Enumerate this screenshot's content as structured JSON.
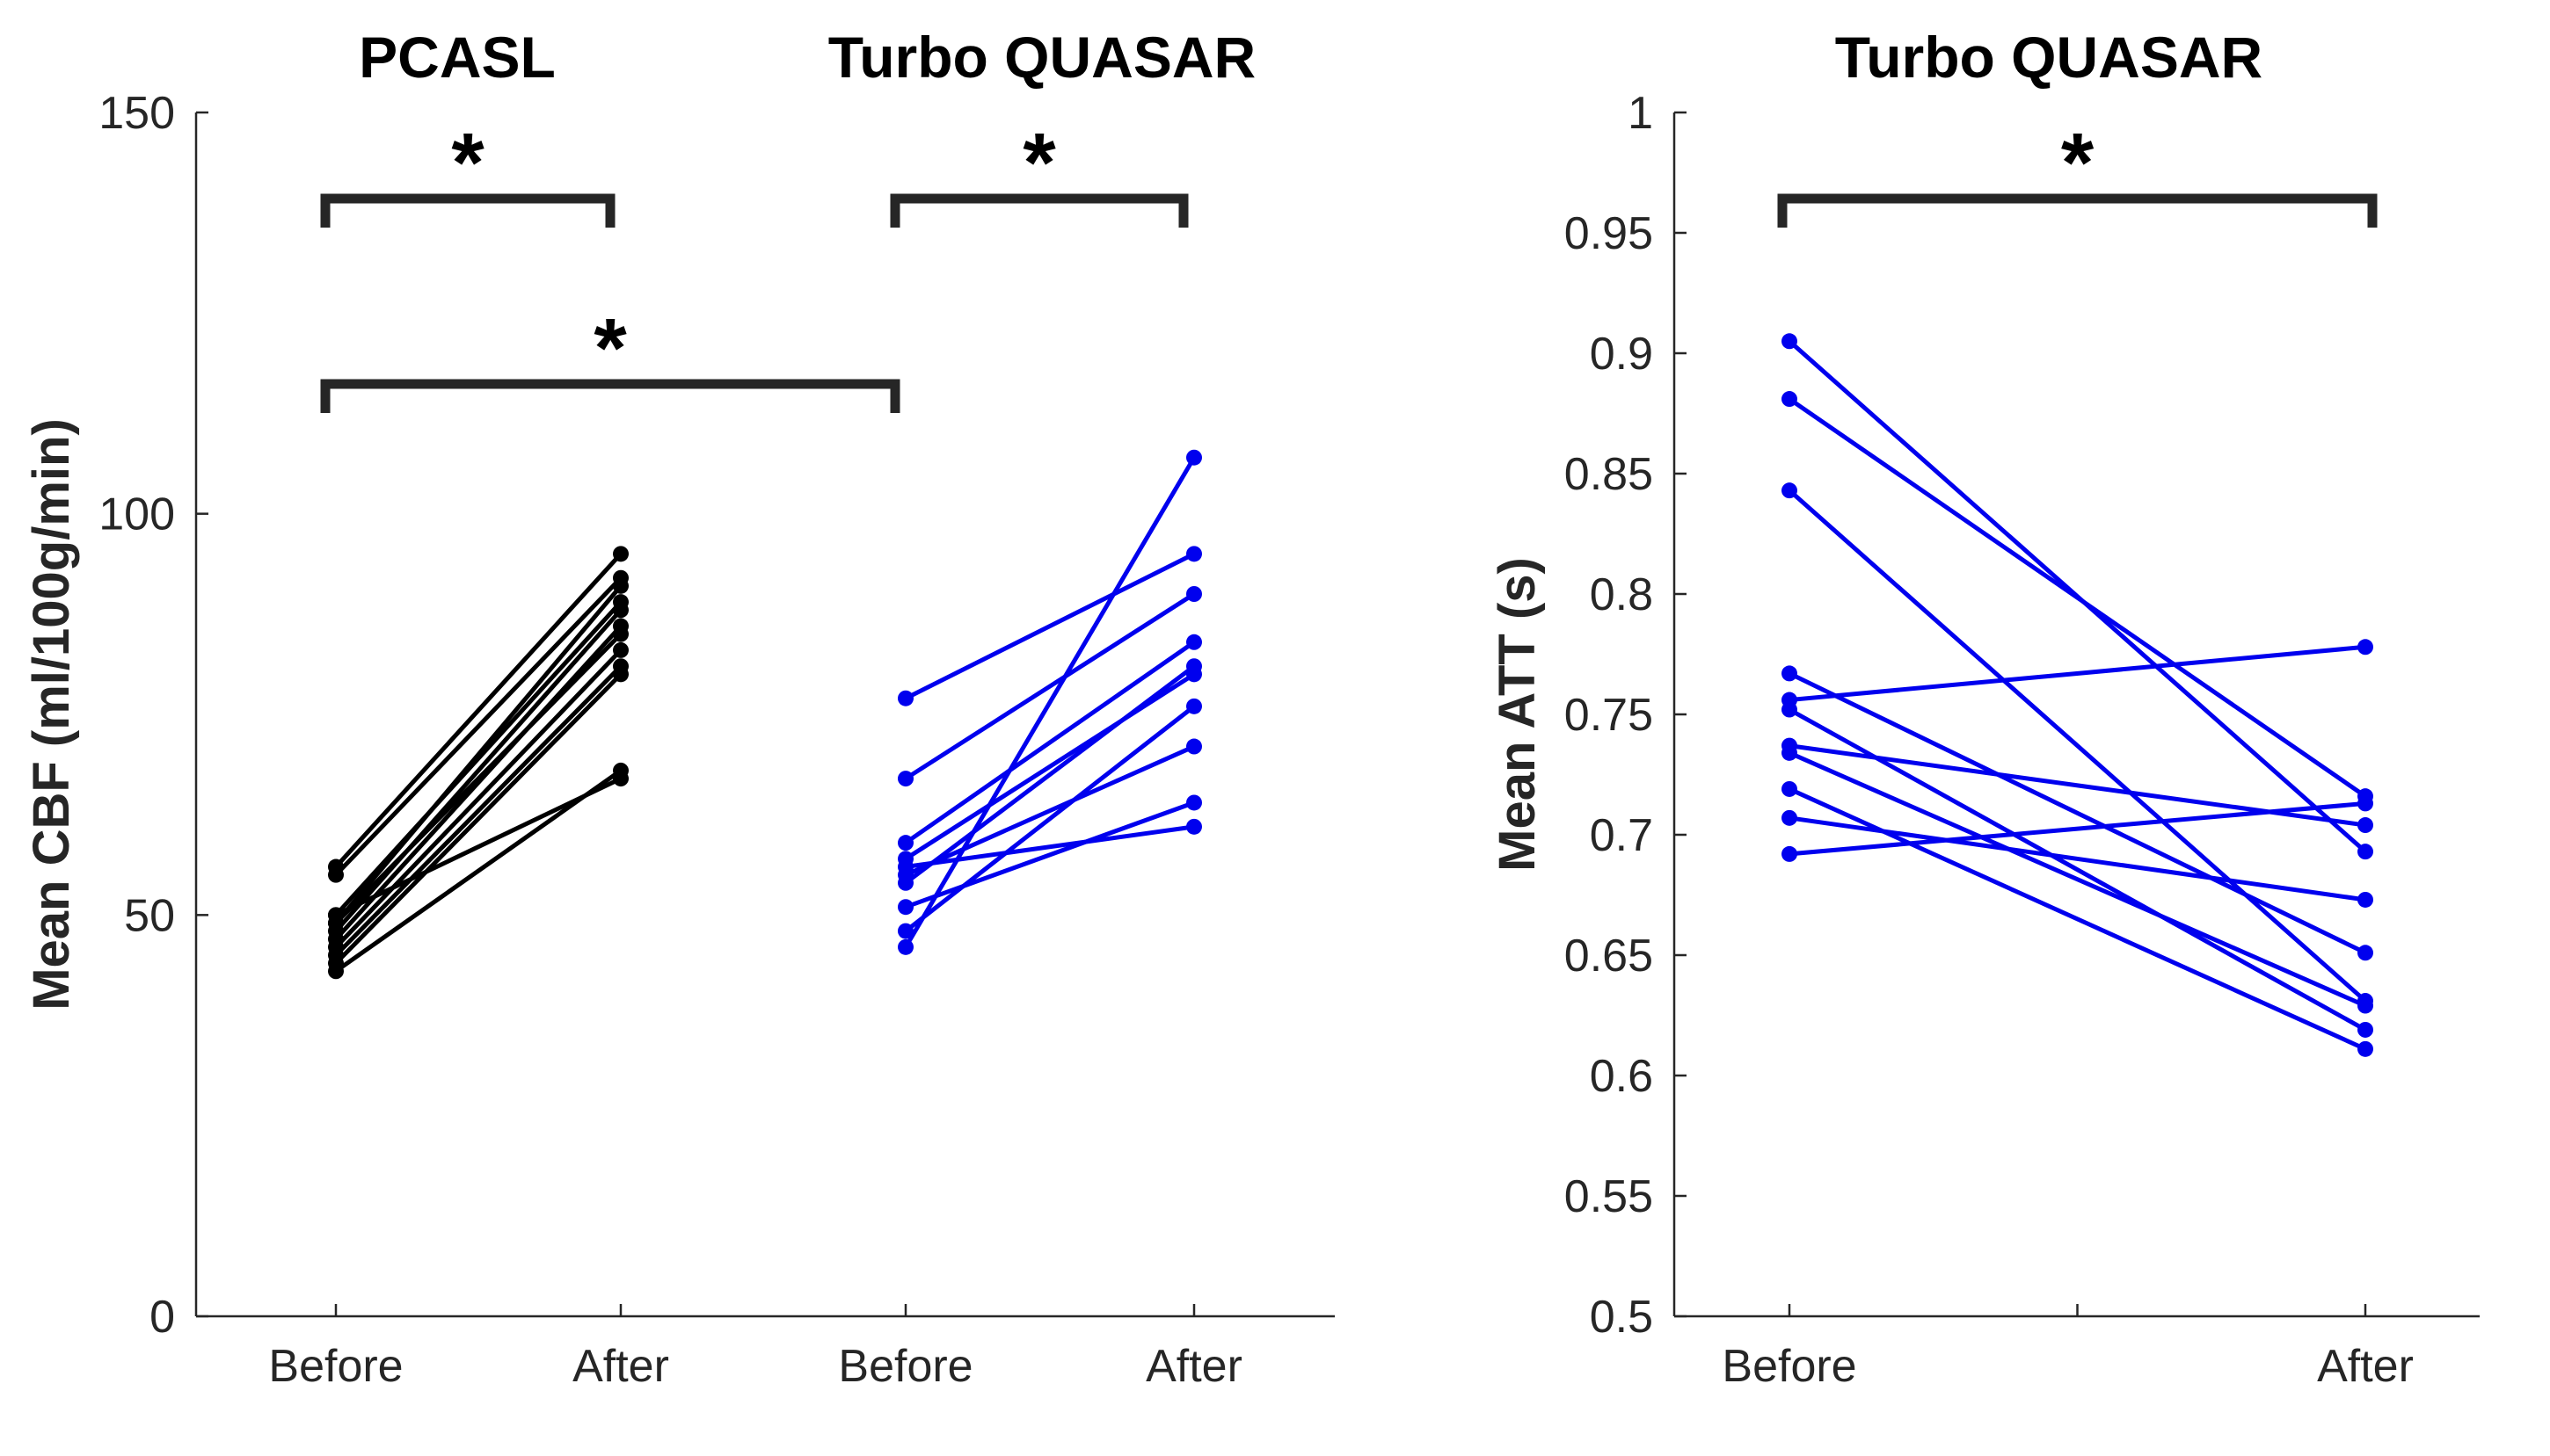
{
  "chart_data": [
    {
      "type": "line",
      "panel": "left",
      "ylabel": "Mean CBF (ml/100g/min)",
      "ylim": [
        0,
        150
      ],
      "yticks": [
        0,
        50,
        100,
        150
      ],
      "tick_labels": [
        "Before",
        "After",
        "Before",
        "After"
      ],
      "groups": [
        {
          "name": "PCASL",
          "title": "PCASL",
          "color": "#000000",
          "x": [
            1,
            2
          ],
          "pairs": [
            [
              56,
              95
            ],
            [
              55,
              92
            ],
            [
              50,
              89
            ],
            [
              49,
              91
            ],
            [
              48,
              88
            ],
            [
              47,
              86
            ],
            [
              46,
              83
            ],
            [
              45,
              81
            ],
            [
              44,
              80
            ],
            [
              43,
              68
            ],
            [
              50,
              67
            ],
            [
              49,
              85
            ]
          ]
        },
        {
          "name": "Turbo QUASAR",
          "title": "Turbo QUASAR",
          "color": "#0000ee",
          "x": [
            3,
            4
          ],
          "pairs": [
            [
              77,
              95
            ],
            [
              67,
              90
            ],
            [
              59,
              84
            ],
            [
              57,
              80
            ],
            [
              56,
              61
            ],
            [
              54,
              81
            ],
            [
              51,
              64
            ],
            [
              48,
              76
            ],
            [
              46,
              107
            ],
            [
              55,
              71
            ]
          ]
        }
      ],
      "significance": [
        {
          "from": 1,
          "to": 2,
          "level": 1,
          "label": "*"
        },
        {
          "from": 3,
          "to": 4,
          "level": 1,
          "label": "*"
        },
        {
          "from": 1,
          "to": 3,
          "level": 2,
          "label": "*"
        }
      ]
    },
    {
      "type": "line",
      "panel": "right",
      "title": "Turbo QUASAR",
      "ylabel": "Mean ATT (s)",
      "ylim": [
        0.5,
        1
      ],
      "yticks": [
        0.5,
        0.55,
        0.6,
        0.65,
        0.7,
        0.75,
        0.8,
        0.85,
        0.9,
        0.95,
        1
      ],
      "ytick_labels": [
        "0.5",
        "0.55",
        "0.6",
        "0.65",
        "0.7",
        "0.75",
        "0.8",
        "0.85",
        "0.9",
        "0.95",
        "1"
      ],
      "tick_labels": [
        "Before",
        "After"
      ],
      "color": "#0000ee",
      "x": [
        1,
        2
      ],
      "pairs": [
        [
          0.905,
          0.693
        ],
        [
          0.881,
          0.716
        ],
        [
          0.843,
          0.631
        ],
        [
          0.767,
          0.651
        ],
        [
          0.756,
          0.778
        ],
        [
          0.752,
          0.619
        ],
        [
          0.737,
          0.704
        ],
        [
          0.734,
          0.629
        ],
        [
          0.719,
          0.611
        ],
        [
          0.707,
          0.673
        ],
        [
          0.692,
          0.713
        ]
      ],
      "significance": [
        {
          "from": 1,
          "to": 2,
          "level": 1,
          "label": "*"
        }
      ]
    }
  ]
}
